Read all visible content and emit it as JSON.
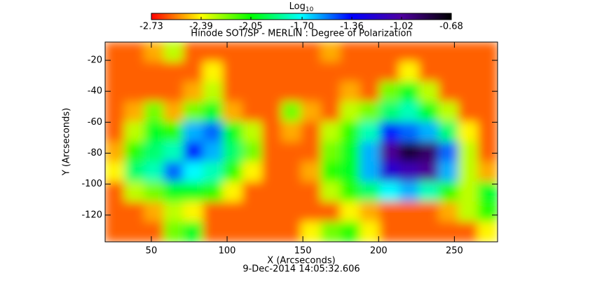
{
  "chart_data": {
    "type": "heatmap",
    "title": "Hinode SOT/SP - MERLIN : Degree of Polarization",
    "xlabel": "X (Arcseconds)",
    "ylabel": "Y (Arcseconds)",
    "date": "9-Dec-2014 14:05:32.606",
    "xlim": [
      19.5,
      278.5
    ],
    "ylim": [
      -137.3,
      -8.2
    ],
    "xticks": [
      50,
      100,
      150,
      200,
      250
    ],
    "yticks": [
      -120,
      -100,
      -80,
      -60,
      -40,
      -20
    ],
    "colorbar": {
      "title": "Log",
      "title_sub": "10",
      "clim": [
        -2.73,
        -0.68
      ],
      "ticks": [
        -2.73,
        -2.39,
        -2.05,
        {
          "value": -1.7,
          "label": "-1.70"
        },
        -1.36,
        -1.02,
        -0.68
      ],
      "colormap": [
        "#ff0000",
        "#ffff00",
        "#00ff00",
        "#00ffff",
        "#0000ff",
        "#5000a0",
        "#000000"
      ]
    },
    "z": [
      [
        -2.6,
        -2.6,
        -2.5,
        -2.3,
        -2.6,
        -2.6,
        -2.6,
        -2.6,
        -2.6,
        -2.6,
        -2.6,
        -2.5,
        -2.6,
        -2.6,
        -2.6,
        -2.6,
        -2.6,
        -2.6,
        -2.6,
        -2.6
      ],
      [
        -2.6,
        -2.6,
        -2.6,
        -2.6,
        -2.6,
        -2.4,
        -2.6,
        -2.6,
        -2.6,
        -2.6,
        -2.6,
        -2.6,
        -2.6,
        -2.6,
        -2.6,
        -2.4,
        -2.6,
        -2.6,
        -2.6,
        -2.6
      ],
      [
        -2.6,
        -2.6,
        -2.6,
        -2.6,
        -2.5,
        -2.3,
        -2.6,
        -2.6,
        -2.6,
        -2.6,
        -2.6,
        -2.6,
        -2.5,
        -2.6,
        -2.2,
        -2.0,
        -2.3,
        -2.6,
        -2.6,
        -2.6
      ],
      [
        -2.6,
        -2.5,
        -2.2,
        -2.5,
        -2.2,
        -2.0,
        -2.5,
        -2.6,
        -2.6,
        -2.2,
        -2.5,
        -2.6,
        -2.3,
        -2.2,
        -1.9,
        -1.8,
        -2.0,
        -2.3,
        -2.6,
        -2.6
      ],
      [
        -2.6,
        -2.3,
        -2.0,
        -2.1,
        -1.6,
        -1.5,
        -2.0,
        -2.3,
        -2.6,
        -2.5,
        -2.6,
        -2.3,
        -2.1,
        -1.8,
        -1.4,
        -1.5,
        -1.6,
        -1.9,
        -2.4,
        -2.6
      ],
      [
        -2.5,
        -2.1,
        -1.9,
        -1.8,
        -1.4,
        -1.6,
        -1.9,
        -2.2,
        -2.6,
        -2.6,
        -2.6,
        -2.2,
        -2.0,
        -1.6,
        -1.0,
        -0.8,
        -0.9,
        -1.5,
        -2.3,
        -2.6
      ],
      [
        -2.4,
        -1.9,
        -1.8,
        -1.5,
        -1.7,
        -1.8,
        -2.1,
        -2.4,
        -2.6,
        -2.6,
        -2.5,
        -2.1,
        -2.0,
        -1.6,
        -1.2,
        -1.1,
        -1.0,
        -1.6,
        -2.3,
        -2.5
      ],
      [
        -2.6,
        -2.3,
        -2.2,
        -2.0,
        -2.0,
        -2.1,
        -2.4,
        -2.6,
        -2.6,
        -2.6,
        -2.6,
        -2.3,
        -2.1,
        -1.9,
        -1.7,
        -1.6,
        -1.8,
        -2.1,
        -2.3,
        -2.0
      ],
      [
        -2.6,
        -2.6,
        -2.5,
        -2.3,
        -2.4,
        -2.6,
        -2.6,
        -2.6,
        -2.6,
        -2.6,
        -2.6,
        -2.6,
        -2.4,
        -2.5,
        -2.6,
        -2.6,
        -2.6,
        -2.5,
        -2.3,
        -2.1
      ],
      [
        -2.6,
        -2.6,
        -2.6,
        -2.2,
        -2.0,
        -2.6,
        -2.6,
        -2.6,
        -2.6,
        -2.6,
        -2.4,
        -2.2,
        -2.1,
        -2.4,
        -2.6,
        -2.6,
        -2.6,
        -2.6,
        -2.6,
        -2.4
      ]
    ]
  }
}
